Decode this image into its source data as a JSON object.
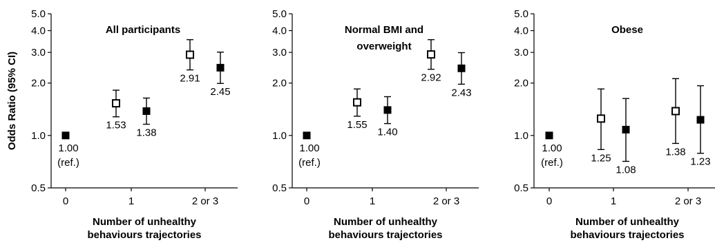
{
  "chart_data": {
    "type": "scatter",
    "shared": {
      "ylabel": "Odds Ratio (95% CI)",
      "xlabel_lines": [
        "Number of unhealthy",
        "behaviours trajectories"
      ],
      "y_scale": "log",
      "ylim": [
        0.5,
        5.0
      ],
      "y_ticks": [
        "0.5",
        "1.0",
        "2.0",
        "3.0",
        "4.0",
        "5.0"
      ],
      "x_tick_labels": [
        "0",
        "1",
        "2 or 3"
      ],
      "grid": false,
      "marker_styles": {
        "open": "open-square",
        "filled": "filled-square"
      }
    },
    "panels": [
      {
        "title_lines": [
          "All participants"
        ],
        "points": [
          {
            "group": "0",
            "style": "filled",
            "or": 1.0,
            "ci": null,
            "label": "1.00",
            "label2": "(ref.)"
          },
          {
            "group": "1",
            "style": "open",
            "or": 1.53,
            "ci": [
              1.28,
              1.82
            ],
            "label": "1.53"
          },
          {
            "group": "1",
            "style": "filled",
            "or": 1.38,
            "ci": [
              1.16,
              1.64
            ],
            "label": "1.38"
          },
          {
            "group": "2 or 3",
            "style": "open",
            "or": 2.91,
            "ci": [
              2.38,
              3.55
            ],
            "label": "2.91"
          },
          {
            "group": "2 or 3",
            "style": "filled",
            "or": 2.45,
            "ci": [
              1.99,
              3.01
            ],
            "label": "2.45"
          }
        ]
      },
      {
        "title_lines": [
          "Normal BMI and",
          "overweight"
        ],
        "points": [
          {
            "group": "0",
            "style": "filled",
            "or": 1.0,
            "ci": null,
            "label": "1.00",
            "label2": "(ref.)"
          },
          {
            "group": "1",
            "style": "open",
            "or": 1.55,
            "ci": [
              1.29,
              1.85
            ],
            "label": "1.55"
          },
          {
            "group": "1",
            "style": "filled",
            "or": 1.4,
            "ci": [
              1.17,
              1.67
            ],
            "label": "1.40"
          },
          {
            "group": "2 or 3",
            "style": "open",
            "or": 2.92,
            "ci": [
              2.4,
              3.55
            ],
            "label": "2.92"
          },
          {
            "group": "2 or 3",
            "style": "filled",
            "or": 2.43,
            "ci": [
              1.97,
              2.99
            ],
            "label": "2.43"
          }
        ]
      },
      {
        "title_lines": [
          "Obese"
        ],
        "points": [
          {
            "group": "0",
            "style": "filled",
            "or": 1.0,
            "ci": null,
            "label": "1.00",
            "label2": "(ref.)"
          },
          {
            "group": "1",
            "style": "open",
            "or": 1.25,
            "ci": [
              0.83,
              1.85
            ],
            "label": "1.25"
          },
          {
            "group": "1",
            "style": "filled",
            "or": 1.08,
            "ci": [
              0.71,
              1.63
            ],
            "label": "1.08"
          },
          {
            "group": "2 or 3",
            "style": "open",
            "or": 1.38,
            "ci": [
              0.9,
              2.12
            ],
            "label": "1.38"
          },
          {
            "group": "2 or 3",
            "style": "filled",
            "or": 1.23,
            "ci": [
              0.79,
              1.93
            ],
            "label": "1.23"
          }
        ]
      }
    ]
  }
}
